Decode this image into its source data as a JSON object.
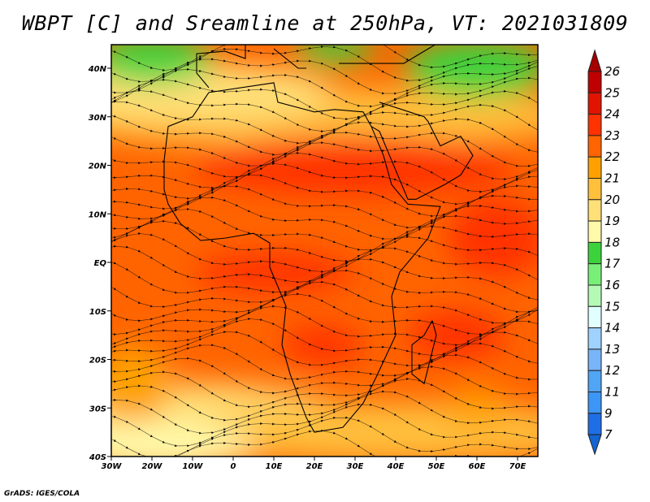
{
  "title": "WBPT [C] and Sreamline at 250hPa, VT: 2021031809",
  "credit": "GrADS: IGES/COLA",
  "chart_data": {
    "type": "heatmap",
    "variable": "WBPT [C]",
    "overlay": "streamlines at 250hPa",
    "valid_time": "2021031809",
    "lon_range": [
      -30,
      75
    ],
    "lat_range": [
      -40,
      45
    ],
    "x_ticks": [
      {
        "value": -30,
        "label": "30W"
      },
      {
        "value": -20,
        "label": "20W"
      },
      {
        "value": -10,
        "label": "10W"
      },
      {
        "value": 0,
        "label": "0"
      },
      {
        "value": 10,
        "label": "10E"
      },
      {
        "value": 20,
        "label": "20E"
      },
      {
        "value": 30,
        "label": "30E"
      },
      {
        "value": 40,
        "label": "40E"
      },
      {
        "value": 50,
        "label": "50E"
      },
      {
        "value": 60,
        "label": "60E"
      },
      {
        "value": 70,
        "label": "70E"
      }
    ],
    "y_ticks": [
      {
        "value": 40,
        "label": "40N"
      },
      {
        "value": 30,
        "label": "30N"
      },
      {
        "value": 20,
        "label": "20N"
      },
      {
        "value": 10,
        "label": "10N"
      },
      {
        "value": 0,
        "label": "EQ"
      },
      {
        "value": -10,
        "label": "10S"
      },
      {
        "value": -20,
        "label": "20S"
      },
      {
        "value": -30,
        "label": "30S"
      },
      {
        "value": -40,
        "label": "40S"
      }
    ],
    "colorbar": {
      "labels": [
        "26",
        "25",
        "24",
        "23",
        "22",
        "21",
        "20",
        "19",
        "18",
        "17",
        "16",
        "15",
        "14",
        "13",
        "12",
        "11",
        "9",
        "7"
      ],
      "top_arrow_color": "#a50000",
      "colors": [
        "#c00000",
        "#e01400",
        "#ff3200",
        "#ff6400",
        "#ffa000",
        "#ffc03c",
        "#ffe078",
        "#fffaaa",
        "#3cd23c",
        "#78f078",
        "#b4fab4",
        "#e1ffff",
        "#a0d2ff",
        "#78b4f8",
        "#50a5f5",
        "#3c96f5",
        "#1e6ee6"
      ],
      "bottom_arrow_color": "#1464d2"
    }
  }
}
